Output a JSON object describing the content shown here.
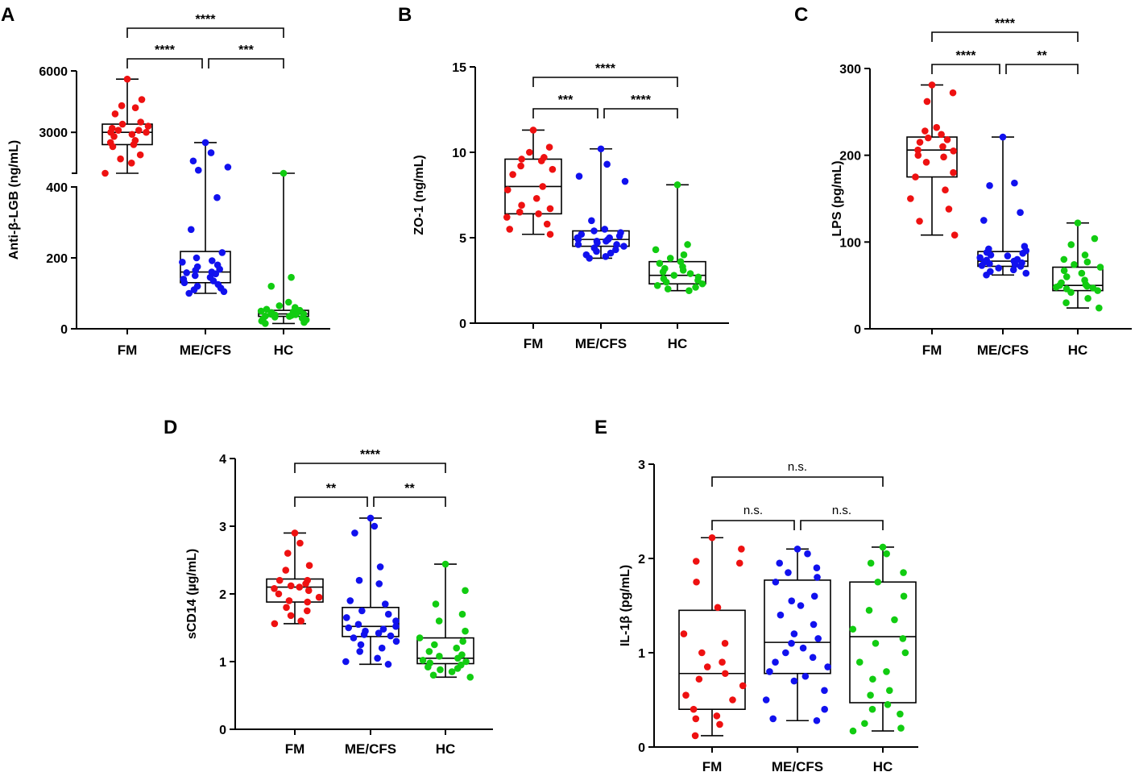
{
  "figure": {
    "description_colors": {
      "FM": "#ee1111",
      "ME/CFS": "#1111ee",
      "HC": "#11cc11"
    }
  },
  "chart_data": [
    {
      "panel": "A",
      "type": "box",
      "ylabel": "Anti-β-LGB (ng/mL)",
      "categories": [
        "FM",
        "ME/CFS",
        "HC"
      ],
      "axis_break": {
        "lower_ylim": [
          0,
          400
        ],
        "upper_ylim": [
          1000,
          6000
        ]
      },
      "lower_yticks": [
        0,
        200,
        400
      ],
      "upper_yticks": [
        3000,
        6000
      ],
      "groups": [
        {
          "name": "FM",
          "color": "#ee1111",
          "min": 1000,
          "q1": 2400,
          "median": 3000,
          "q3": 3400,
          "max": 5600,
          "points": [
            5600,
            4600,
            4300,
            4200,
            3900,
            3500,
            3400,
            3300,
            3200,
            3100,
            3100,
            3000,
            3000,
            2900,
            2800,
            2600,
            2500,
            2400,
            2300,
            1900,
            1700,
            1500,
            1000
          ]
        },
        {
          "name": "ME/CFS",
          "color": "#1111ee",
          "min": 100,
          "q1": 130,
          "median": 160,
          "q3": 218,
          "max": 2500,
          "points": [
            2500,
            2000,
            1600,
            1300,
            1150,
            370,
            280,
            215,
            200,
            192,
            188,
            180,
            175,
            168,
            165,
            160,
            158,
            155,
            150,
            145,
            140,
            135,
            130,
            125,
            120,
            115,
            110,
            105,
            100
          ]
        },
        {
          "name": "HC",
          "color": "#11cc11",
          "min": 15,
          "q1": 35,
          "median": 42,
          "q3": 52,
          "max": 430,
          "points": [
            430,
            145,
            120,
            75,
            65,
            60,
            55,
            52,
            50,
            48,
            46,
            45,
            44,
            42,
            41,
            40,
            39,
            38,
            36,
            35,
            33,
            30,
            28,
            25,
            22,
            18,
            15
          ]
        }
      ],
      "comparisons": [
        {
          "pair": [
            "FM",
            "ME/CFS"
          ],
          "label": "****"
        },
        {
          "pair": [
            "ME/CFS",
            "HC"
          ],
          "label": "***"
        },
        {
          "pair": [
            "FM",
            "HC"
          ],
          "label": "****"
        }
      ]
    },
    {
      "panel": "B",
      "type": "box",
      "ylabel": "ZO-1 (ng/mL)",
      "categories": [
        "FM",
        "ME/CFS",
        "HC"
      ],
      "ylim": [
        0,
        15
      ],
      "yticks": [
        0,
        5,
        10,
        15
      ],
      "groups": [
        {
          "name": "FM",
          "color": "#ee1111",
          "min": 5.2,
          "q1": 6.4,
          "median": 8.0,
          "q3": 9.6,
          "max": 11.3,
          "points": [
            11.3,
            10.3,
            10.0,
            9.7,
            9.6,
            9.5,
            9.2,
            9.0,
            8.7,
            8.0,
            7.8,
            7.3,
            6.9,
            6.7,
            6.5,
            6.4,
            6.2,
            5.8,
            5.5,
            5.2
          ]
        },
        {
          "name": "ME/CFS",
          "color": "#1111ee",
          "min": 3.8,
          "q1": 4.5,
          "median": 4.9,
          "q3": 5.4,
          "max": 10.2,
          "points": [
            10.2,
            9.3,
            8.6,
            8.3,
            6.0,
            5.5,
            5.4,
            5.3,
            5.2,
            5.1,
            5.0,
            5.0,
            4.9,
            4.9,
            4.8,
            4.8,
            4.7,
            4.6,
            4.6,
            4.5,
            4.4,
            4.3,
            4.2,
            4.1,
            4.0,
            3.9,
            3.8
          ]
        },
        {
          "name": "HC",
          "color": "#11cc11",
          "min": 1.9,
          "q1": 2.3,
          "median": 2.8,
          "q3": 3.6,
          "max": 8.1,
          "points": [
            8.1,
            4.6,
            4.3,
            4.0,
            3.8,
            3.6,
            3.5,
            3.3,
            3.2,
            3.1,
            3.0,
            2.9,
            2.8,
            2.7,
            2.6,
            2.5,
            2.4,
            2.3,
            2.2,
            2.1,
            2.0,
            1.9
          ]
        }
      ],
      "comparisons": [
        {
          "pair": [
            "FM",
            "ME/CFS"
          ],
          "label": "***"
        },
        {
          "pair": [
            "ME/CFS",
            "HC"
          ],
          "label": "****"
        },
        {
          "pair": [
            "FM",
            "HC"
          ],
          "label": "****"
        }
      ]
    },
    {
      "panel": "C",
      "type": "box",
      "ylabel": "LPS (pg/mL)",
      "categories": [
        "FM",
        "ME/CFS",
        "HC"
      ],
      "ylim": [
        0,
        300
      ],
      "yticks": [
        0,
        100,
        200,
        300
      ],
      "groups": [
        {
          "name": "FM",
          "color": "#ee1111",
          "min": 108,
          "q1": 175,
          "median": 206,
          "q3": 221,
          "max": 281,
          "points": [
            281,
            272,
            262,
            232,
            228,
            224,
            220,
            218,
            215,
            210,
            206,
            205,
            200,
            198,
            192,
            180,
            175,
            160,
            150,
            138,
            124,
            108
          ]
        },
        {
          "name": "ME/CFS",
          "color": "#1111ee",
          "min": 62,
          "q1": 72,
          "median": 78,
          "q3": 89,
          "max": 221,
          "points": [
            221,
            168,
            165,
            134,
            125,
            95,
            92,
            90,
            88,
            87,
            85,
            84,
            82,
            80,
            79,
            78,
            77,
            76,
            75,
            74,
            73,
            72,
            70,
            68,
            66,
            64,
            62
          ]
        },
        {
          "name": "HC",
          "color": "#11cc11",
          "min": 24,
          "q1": 44,
          "median": 50,
          "q3": 71,
          "max": 122,
          "points": [
            122,
            104,
            97,
            85,
            80,
            77,
            74,
            71,
            67,
            64,
            60,
            56,
            53,
            51,
            50,
            49,
            48,
            47,
            46,
            44,
            42,
            35,
            30,
            24
          ]
        }
      ],
      "comparisons": [
        {
          "pair": [
            "FM",
            "ME/CFS"
          ],
          "label": "****"
        },
        {
          "pair": [
            "ME/CFS",
            "HC"
          ],
          "label": "**"
        },
        {
          "pair": [
            "FM",
            "HC"
          ],
          "label": "****"
        }
      ]
    },
    {
      "panel": "D",
      "type": "box",
      "ylabel": "sCD14 (µg/mL)",
      "categories": [
        "FM",
        "ME/CFS",
        "HC"
      ],
      "ylim": [
        0,
        4
      ],
      "yticks": [
        0,
        1,
        2,
        3,
        4
      ],
      "groups": [
        {
          "name": "FM",
          "color": "#ee1111",
          "min": 1.56,
          "q1": 1.88,
          "median": 2.1,
          "q3": 2.22,
          "max": 2.9,
          "points": [
            2.9,
            2.75,
            2.6,
            2.42,
            2.35,
            2.2,
            2.2,
            2.15,
            2.12,
            2.1,
            2.08,
            2.05,
            2.0,
            1.95,
            1.9,
            1.88,
            1.8,
            1.75,
            1.68,
            1.6,
            1.56
          ]
        },
        {
          "name": "ME/CFS",
          "color": "#1111ee",
          "min": 0.96,
          "q1": 1.37,
          "median": 1.52,
          "q3": 1.8,
          "max": 3.12,
          "points": [
            3.12,
            3.0,
            2.9,
            2.4,
            2.2,
            2.15,
            1.9,
            1.85,
            1.75,
            1.7,
            1.65,
            1.6,
            1.55,
            1.52,
            1.5,
            1.48,
            1.45,
            1.42,
            1.4,
            1.38,
            1.35,
            1.3,
            1.25,
            1.2,
            1.15,
            1.05,
            1.0,
            0.96
          ]
        },
        {
          "name": "HC",
          "color": "#11cc11",
          "min": 0.77,
          "q1": 0.97,
          "median": 1.05,
          "q3": 1.35,
          "max": 2.44,
          "points": [
            2.44,
            2.05,
            1.85,
            1.7,
            1.6,
            1.45,
            1.35,
            1.3,
            1.25,
            1.2,
            1.15,
            1.1,
            1.08,
            1.05,
            1.02,
            1.0,
            0.98,
            0.95,
            0.92,
            0.9,
            0.88,
            0.85,
            0.8,
            0.77
          ]
        }
      ],
      "comparisons": [
        {
          "pair": [
            "FM",
            "ME/CFS"
          ],
          "label": "**"
        },
        {
          "pair": [
            "ME/CFS",
            "HC"
          ],
          "label": "**"
        },
        {
          "pair": [
            "FM",
            "HC"
          ],
          "label": "****"
        }
      ]
    },
    {
      "panel": "E",
      "type": "box",
      "ylabel": "IL-1β (pg/mL)",
      "categories": [
        "FM",
        "ME/CFS",
        "HC"
      ],
      "ylim": [
        0,
        3
      ],
      "yticks": [
        0,
        1,
        2,
        3
      ],
      "groups": [
        {
          "name": "FM",
          "color": "#ee1111",
          "min": 0.12,
          "q1": 0.4,
          "median": 0.78,
          "q3": 1.45,
          "max": 2.22,
          "points": [
            2.22,
            2.1,
            1.97,
            1.95,
            1.75,
            1.48,
            1.2,
            1.1,
            1.0,
            0.9,
            0.85,
            0.78,
            0.72,
            0.65,
            0.55,
            0.5,
            0.4,
            0.33,
            0.3,
            0.24,
            0.12
          ]
        },
        {
          "name": "ME/CFS",
          "color": "#1111ee",
          "min": 0.28,
          "q1": 0.78,
          "median": 1.11,
          "q3": 1.77,
          "max": 2.1,
          "points": [
            2.1,
            2.05,
            1.95,
            1.9,
            1.85,
            1.8,
            1.75,
            1.6,
            1.55,
            1.5,
            1.4,
            1.3,
            1.2,
            1.15,
            1.1,
            1.05,
            1.0,
            0.95,
            0.9,
            0.85,
            0.8,
            0.75,
            0.7,
            0.6,
            0.5,
            0.4,
            0.3,
            0.28
          ]
        },
        {
          "name": "HC",
          "color": "#11cc11",
          "min": 0.17,
          "q1": 0.47,
          "median": 1.17,
          "q3": 1.75,
          "max": 2.12,
          "points": [
            2.12,
            2.05,
            1.95,
            1.85,
            1.75,
            1.6,
            1.45,
            1.35,
            1.25,
            1.15,
            1.1,
            1.0,
            0.9,
            0.8,
            0.72,
            0.6,
            0.55,
            0.45,
            0.4,
            0.35,
            0.25,
            0.2,
            0.17
          ]
        }
      ],
      "comparisons": [
        {
          "pair": [
            "FM",
            "ME/CFS"
          ],
          "label": "n.s."
        },
        {
          "pair": [
            "ME/CFS",
            "HC"
          ],
          "label": "n.s."
        },
        {
          "pair": [
            "FM",
            "HC"
          ],
          "label": "n.s."
        }
      ]
    }
  ]
}
